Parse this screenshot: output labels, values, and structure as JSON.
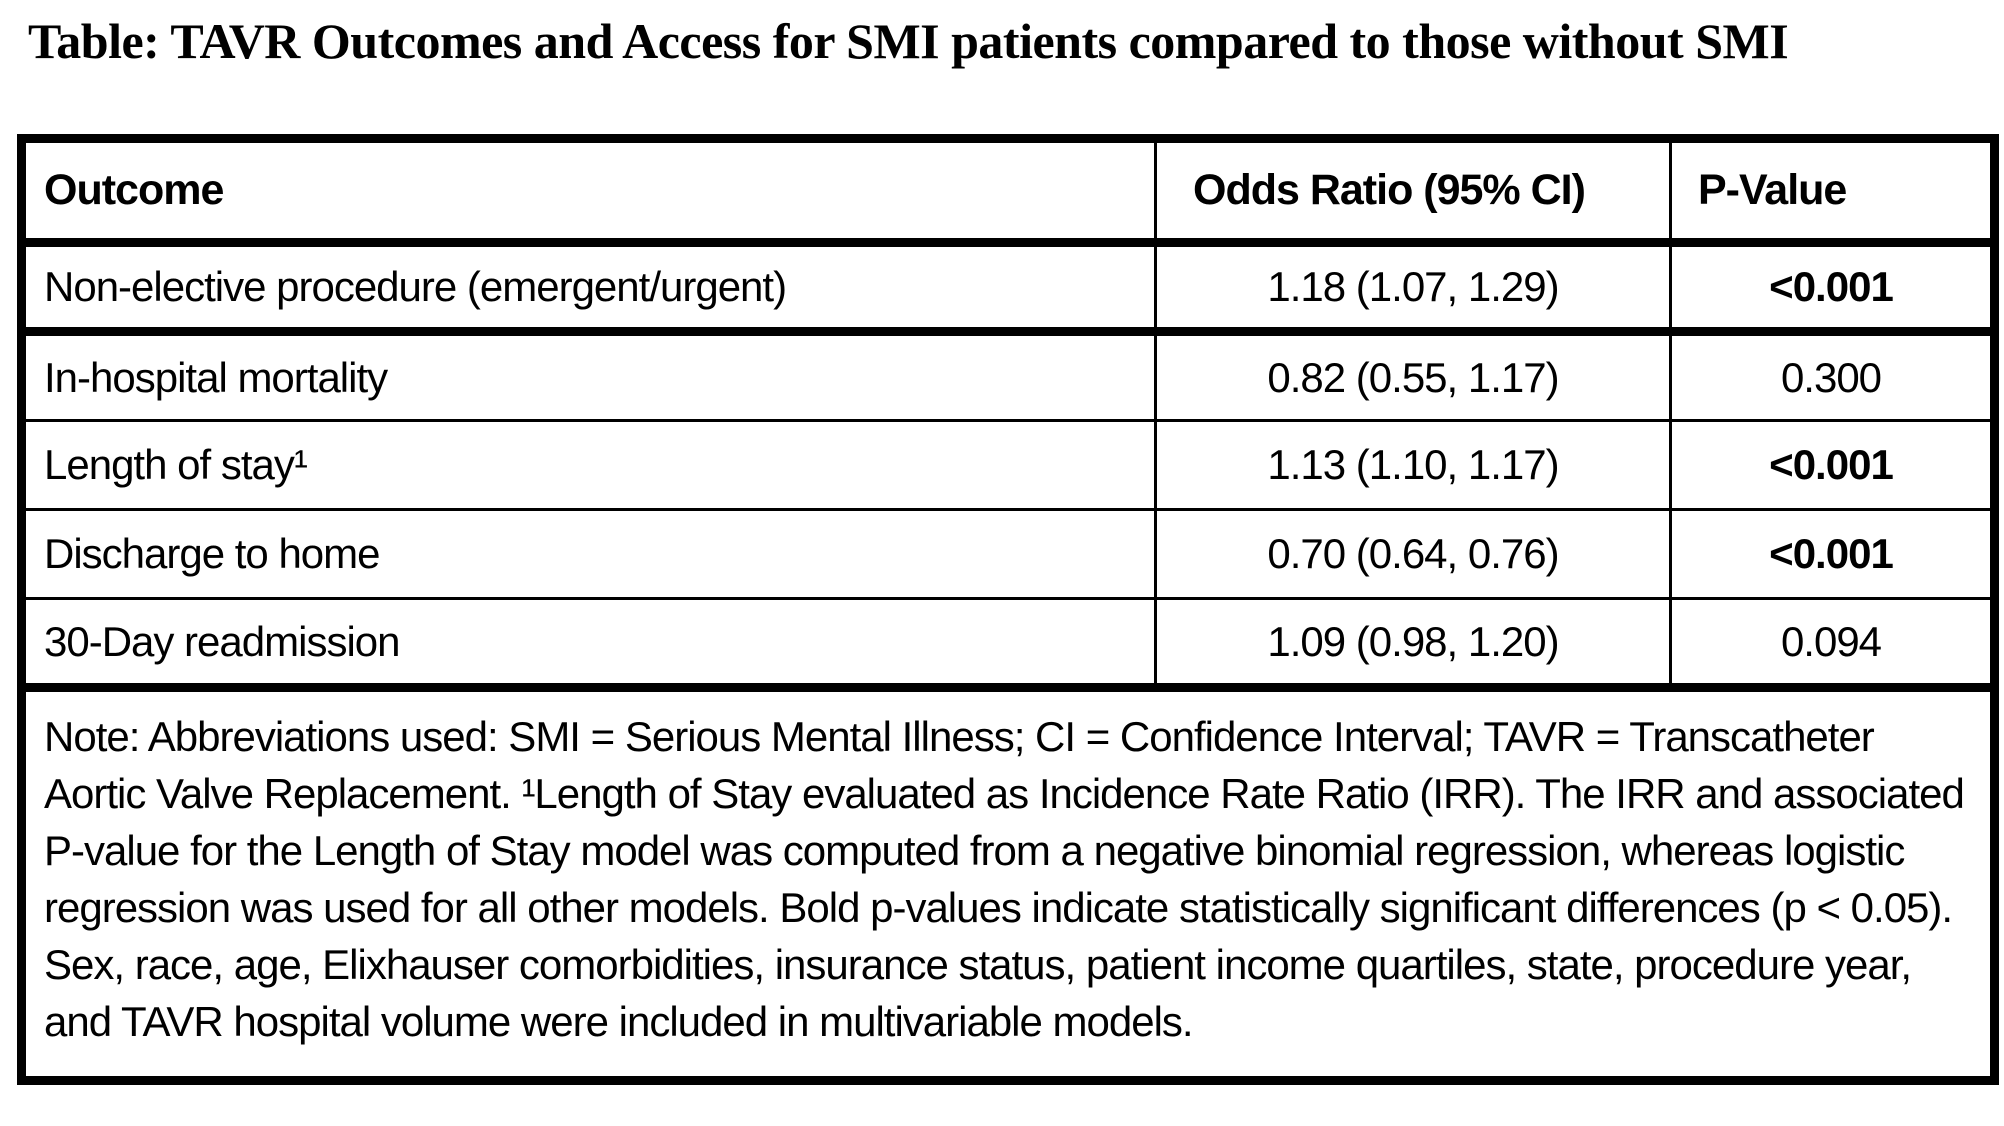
{
  "title": "Table: TAVR Outcomes and Access for SMI patients compared to those without SMI",
  "table": {
    "headers": {
      "outcome": "Outcome",
      "odds_ratio": "Odds Ratio (95% CI)",
      "p_value": "P-Value"
    },
    "rows": [
      {
        "outcome": "Non-elective procedure (emergent/urgent)",
        "odds_ratio": "1.18 (1.07, 1.29)",
        "p_value": "<0.001",
        "p_value_bold": true
      },
      {
        "outcome": "In-hospital mortality",
        "odds_ratio": "0.82 (0.55, 1.17)",
        "p_value": "0.300",
        "p_value_bold": false
      },
      {
        "outcome": "Length of stay¹",
        "odds_ratio": "1.13 (1.10, 1.17)",
        "p_value": "<0.001",
        "p_value_bold": true
      },
      {
        "outcome": "Discharge to home",
        "odds_ratio": "0.70 (0.64, 0.76)",
        "p_value": "<0.001",
        "p_value_bold": true
      },
      {
        "outcome": "30-Day readmission",
        "odds_ratio": "1.09 (0.98, 1.20)",
        "p_value": "0.094",
        "p_value_bold": false
      }
    ],
    "note": "Note: Abbreviations used: SMI = Serious Mental Illness; CI = Confidence Interval; TAVR = Transcatheter Aortic Valve Replacement. ¹Length of Stay evaluated as Incidence Rate Ratio (IRR). The IRR and associated P-value for the Length of Stay model was computed from a negative binomial regression, whereas logistic regression was used for all other models. Bold p-values indicate statistically significant differences (p < 0.05). Sex, race, age, Elixhauser comorbidities, insurance status, patient income quartiles, state, procedure year, and TAVR hospital volume were included in multivariable models."
  },
  "colors": {
    "background": "#ffffff",
    "text": "#000000",
    "border": "#000000"
  }
}
